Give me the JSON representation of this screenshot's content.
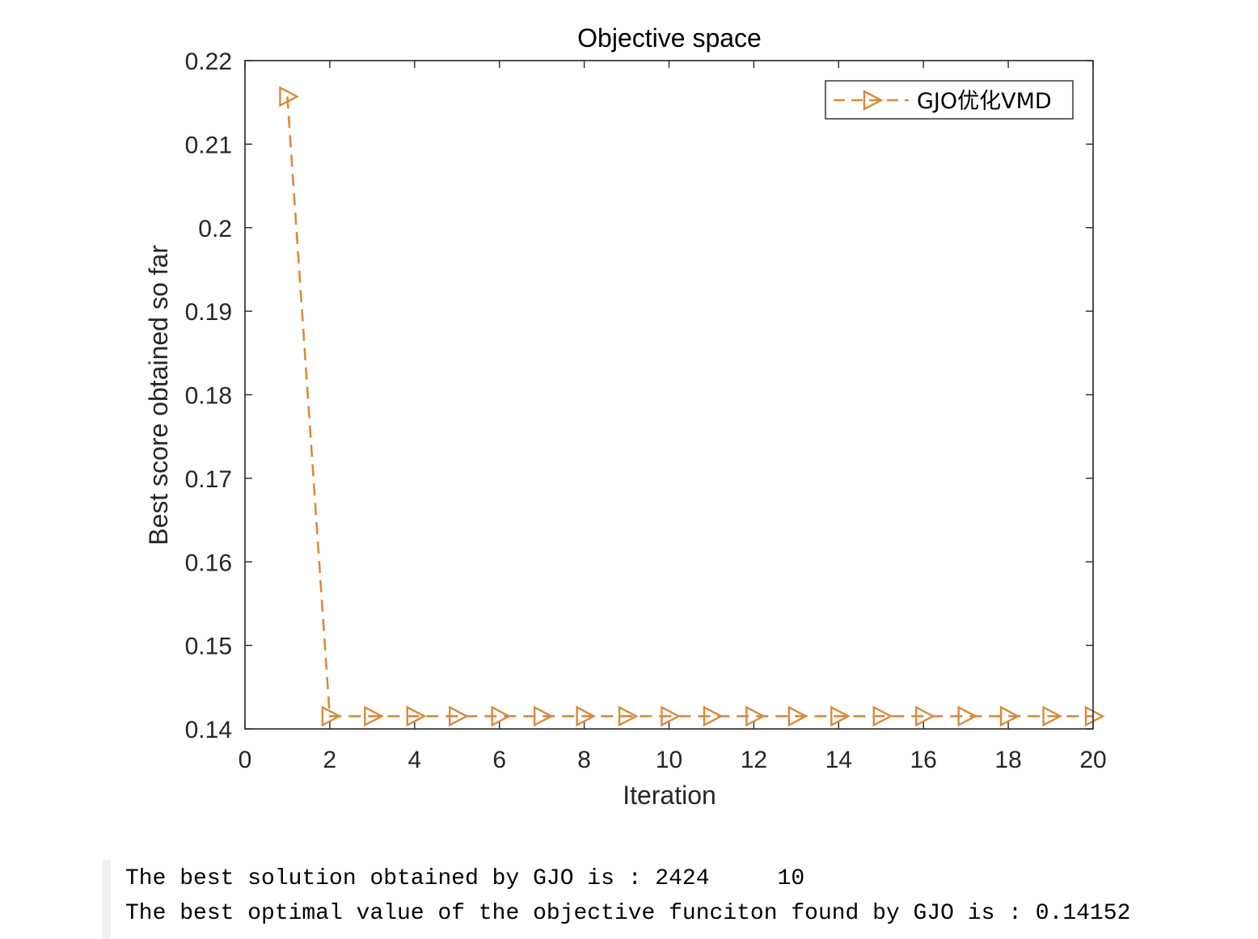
{
  "chart_data": {
    "type": "line",
    "title": "Objective space",
    "xlabel": "Iteration",
    "ylabel": "Best score obtained so far",
    "xlim": [
      0,
      20
    ],
    "ylim": [
      0.14,
      0.22
    ],
    "xticks": [
      0,
      2,
      4,
      6,
      8,
      10,
      12,
      14,
      16,
      18,
      20
    ],
    "yticks": [
      0.14,
      0.15,
      0.16,
      0.17,
      0.18,
      0.19,
      0.2,
      0.21,
      0.22
    ],
    "xtick_labels": [
      "0",
      "2",
      "4",
      "6",
      "8",
      "10",
      "12",
      "14",
      "16",
      "18",
      "20"
    ],
    "ytick_labels": [
      "0.14",
      "0.15",
      "0.16",
      "0.17",
      "0.18",
      "0.19",
      "0.2",
      "0.21",
      "0.22"
    ],
    "grid": false,
    "legend_position": "top-right",
    "series": [
      {
        "name": "GJO优化VMD",
        "color": "#D98A3A",
        "line_style": "dashed",
        "marker": "right-triangle",
        "x": [
          1,
          2,
          3,
          4,
          5,
          6,
          7,
          8,
          9,
          10,
          11,
          12,
          13,
          14,
          15,
          16,
          17,
          18,
          19,
          20
        ],
        "y": [
          0.2157,
          0.14152,
          0.14152,
          0.14152,
          0.14152,
          0.14152,
          0.14152,
          0.14152,
          0.14152,
          0.14152,
          0.14152,
          0.14152,
          0.14152,
          0.14152,
          0.14152,
          0.14152,
          0.14152,
          0.14152,
          0.14152,
          0.14152
        ]
      }
    ]
  },
  "console": {
    "line1_text": "The best solution obtained by GJO is : 2424",
    "line1_value2": "10",
    "line2_text": "The best optimal value of the objective funciton found by GJO is : 0.14152"
  }
}
